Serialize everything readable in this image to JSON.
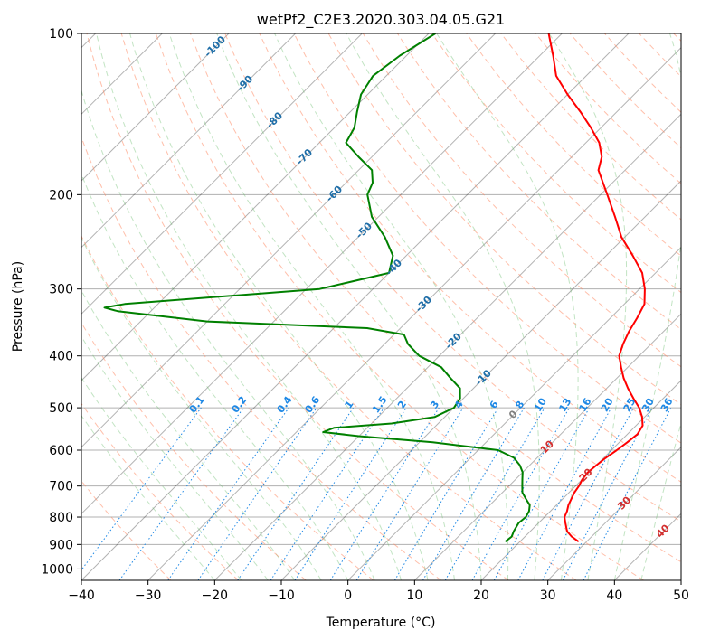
{
  "chart_data": {
    "type": "line",
    "title": "wetPf2_C2E3.2020.303.04.05.G21",
    "xlabel": "Temperature (°C)",
    "ylabel": "Pressure (hPa)",
    "xlim": [
      -40,
      50
    ],
    "ylim": [
      1050,
      100
    ],
    "y_scale": "log",
    "skew": 45,
    "grid": true,
    "x_ticks": [
      -40,
      -30,
      -20,
      -10,
      0,
      10,
      20,
      30,
      40,
      50
    ],
    "y_ticks": [
      100,
      200,
      300,
      400,
      500,
      600,
      700,
      800,
      900,
      1000
    ],
    "dry_adiabat_labels": [
      "-100",
      "-90",
      "-80",
      "-70",
      "-60",
      "-50",
      "-40",
      "-30",
      "-20",
      "-10",
      "0",
      "10",
      "20",
      "30",
      "40"
    ],
    "mixing_ratio_labels": [
      "0.1",
      "0.2",
      "0.4",
      "0.6",
      "1",
      "1.5",
      "2",
      "3",
      "4",
      "6",
      "8",
      "10",
      "13",
      "16",
      "20",
      "25",
      "30",
      "36"
    ],
    "series": [
      {
        "role": "temperature",
        "color": "#ff0000",
        "pressure": [
          889,
          870,
          850,
          820,
          800,
          780,
          760,
          740,
          720,
          700,
          680,
          660,
          640,
          620,
          600,
          580,
          560,
          540,
          520,
          500,
          480,
          460,
          440,
          420,
          400,
          380,
          360,
          340,
          320,
          300,
          280,
          260,
          240,
          220,
          200,
          180,
          170,
          160,
          150,
          140,
          130,
          120,
          110,
          100
        ],
        "temp": [
          28.8,
          27.0,
          25.5,
          24.0,
          23.0,
          22.5,
          21.8,
          21.3,
          20.8,
          20.5,
          20.0,
          19.8,
          20.0,
          20.3,
          20.8,
          21.2,
          21.5,
          21.0,
          19.6,
          17.8,
          15.5,
          13.2,
          11.0,
          9.0,
          7.0,
          5.8,
          4.8,
          4.0,
          3.0,
          0.8,
          -2.0,
          -6.0,
          -10.5,
          -14.5,
          -19.0,
          -24.0,
          -25.5,
          -28.0,
          -31.5,
          -35.5,
          -40.0,
          -44.5,
          -48.0,
          -52.0
        ]
      },
      {
        "role": "dewpoint",
        "color": "#008000",
        "pressure": [
          889,
          870,
          850,
          820,
          800,
          780,
          760,
          740,
          720,
          700,
          680,
          660,
          640,
          620,
          600,
          580,
          565,
          555,
          545,
          535,
          520,
          500,
          480,
          460,
          440,
          420,
          400,
          380,
          365,
          355,
          345,
          330,
          325,
          320,
          300,
          280,
          260,
          240,
          220,
          200,
          190,
          180,
          170,
          160,
          150,
          140,
          130,
          120,
          110,
          100
        ],
        "dewpoint": [
          17.8,
          18.0,
          17.5,
          17.0,
          17.2,
          16.8,
          16.0,
          14.5,
          13.0,
          12.0,
          11.0,
          10.0,
          8.5,
          6.5,
          3.0,
          -8.0,
          -20.0,
          -26.0,
          -25.0,
          -17.0,
          -11.5,
          -10.0,
          -10.5,
          -12.0,
          -15.0,
          -18.0,
          -23.0,
          -26.5,
          -28.5,
          -35.0,
          -60.0,
          -75.0,
          -77.5,
          -75.0,
          -48.0,
          -40.0,
          -42.0,
          -46.0,
          -51.0,
          -55.0,
          -56.0,
          -58.0,
          -62.0,
          -66.0,
          -67.0,
          -69.0,
          -71.0,
          -72.0,
          -71.0,
          -69.0
        ]
      }
    ]
  },
  "colors": {
    "temperature": "#ff0000",
    "dewpoint": "#008000",
    "dry_adiabat": "#ff8a65",
    "moist_adiabat": "#66bb6a",
    "mixing_ratio": "#1e88e5",
    "mixing_label": "#1e88e5",
    "adiabat_label_cool": "#1f6ea8",
    "adiabat_label_warm": "#d32f2f",
    "zero_label": "#808080",
    "isotherm": "#000000",
    "frame": "#000000"
  }
}
